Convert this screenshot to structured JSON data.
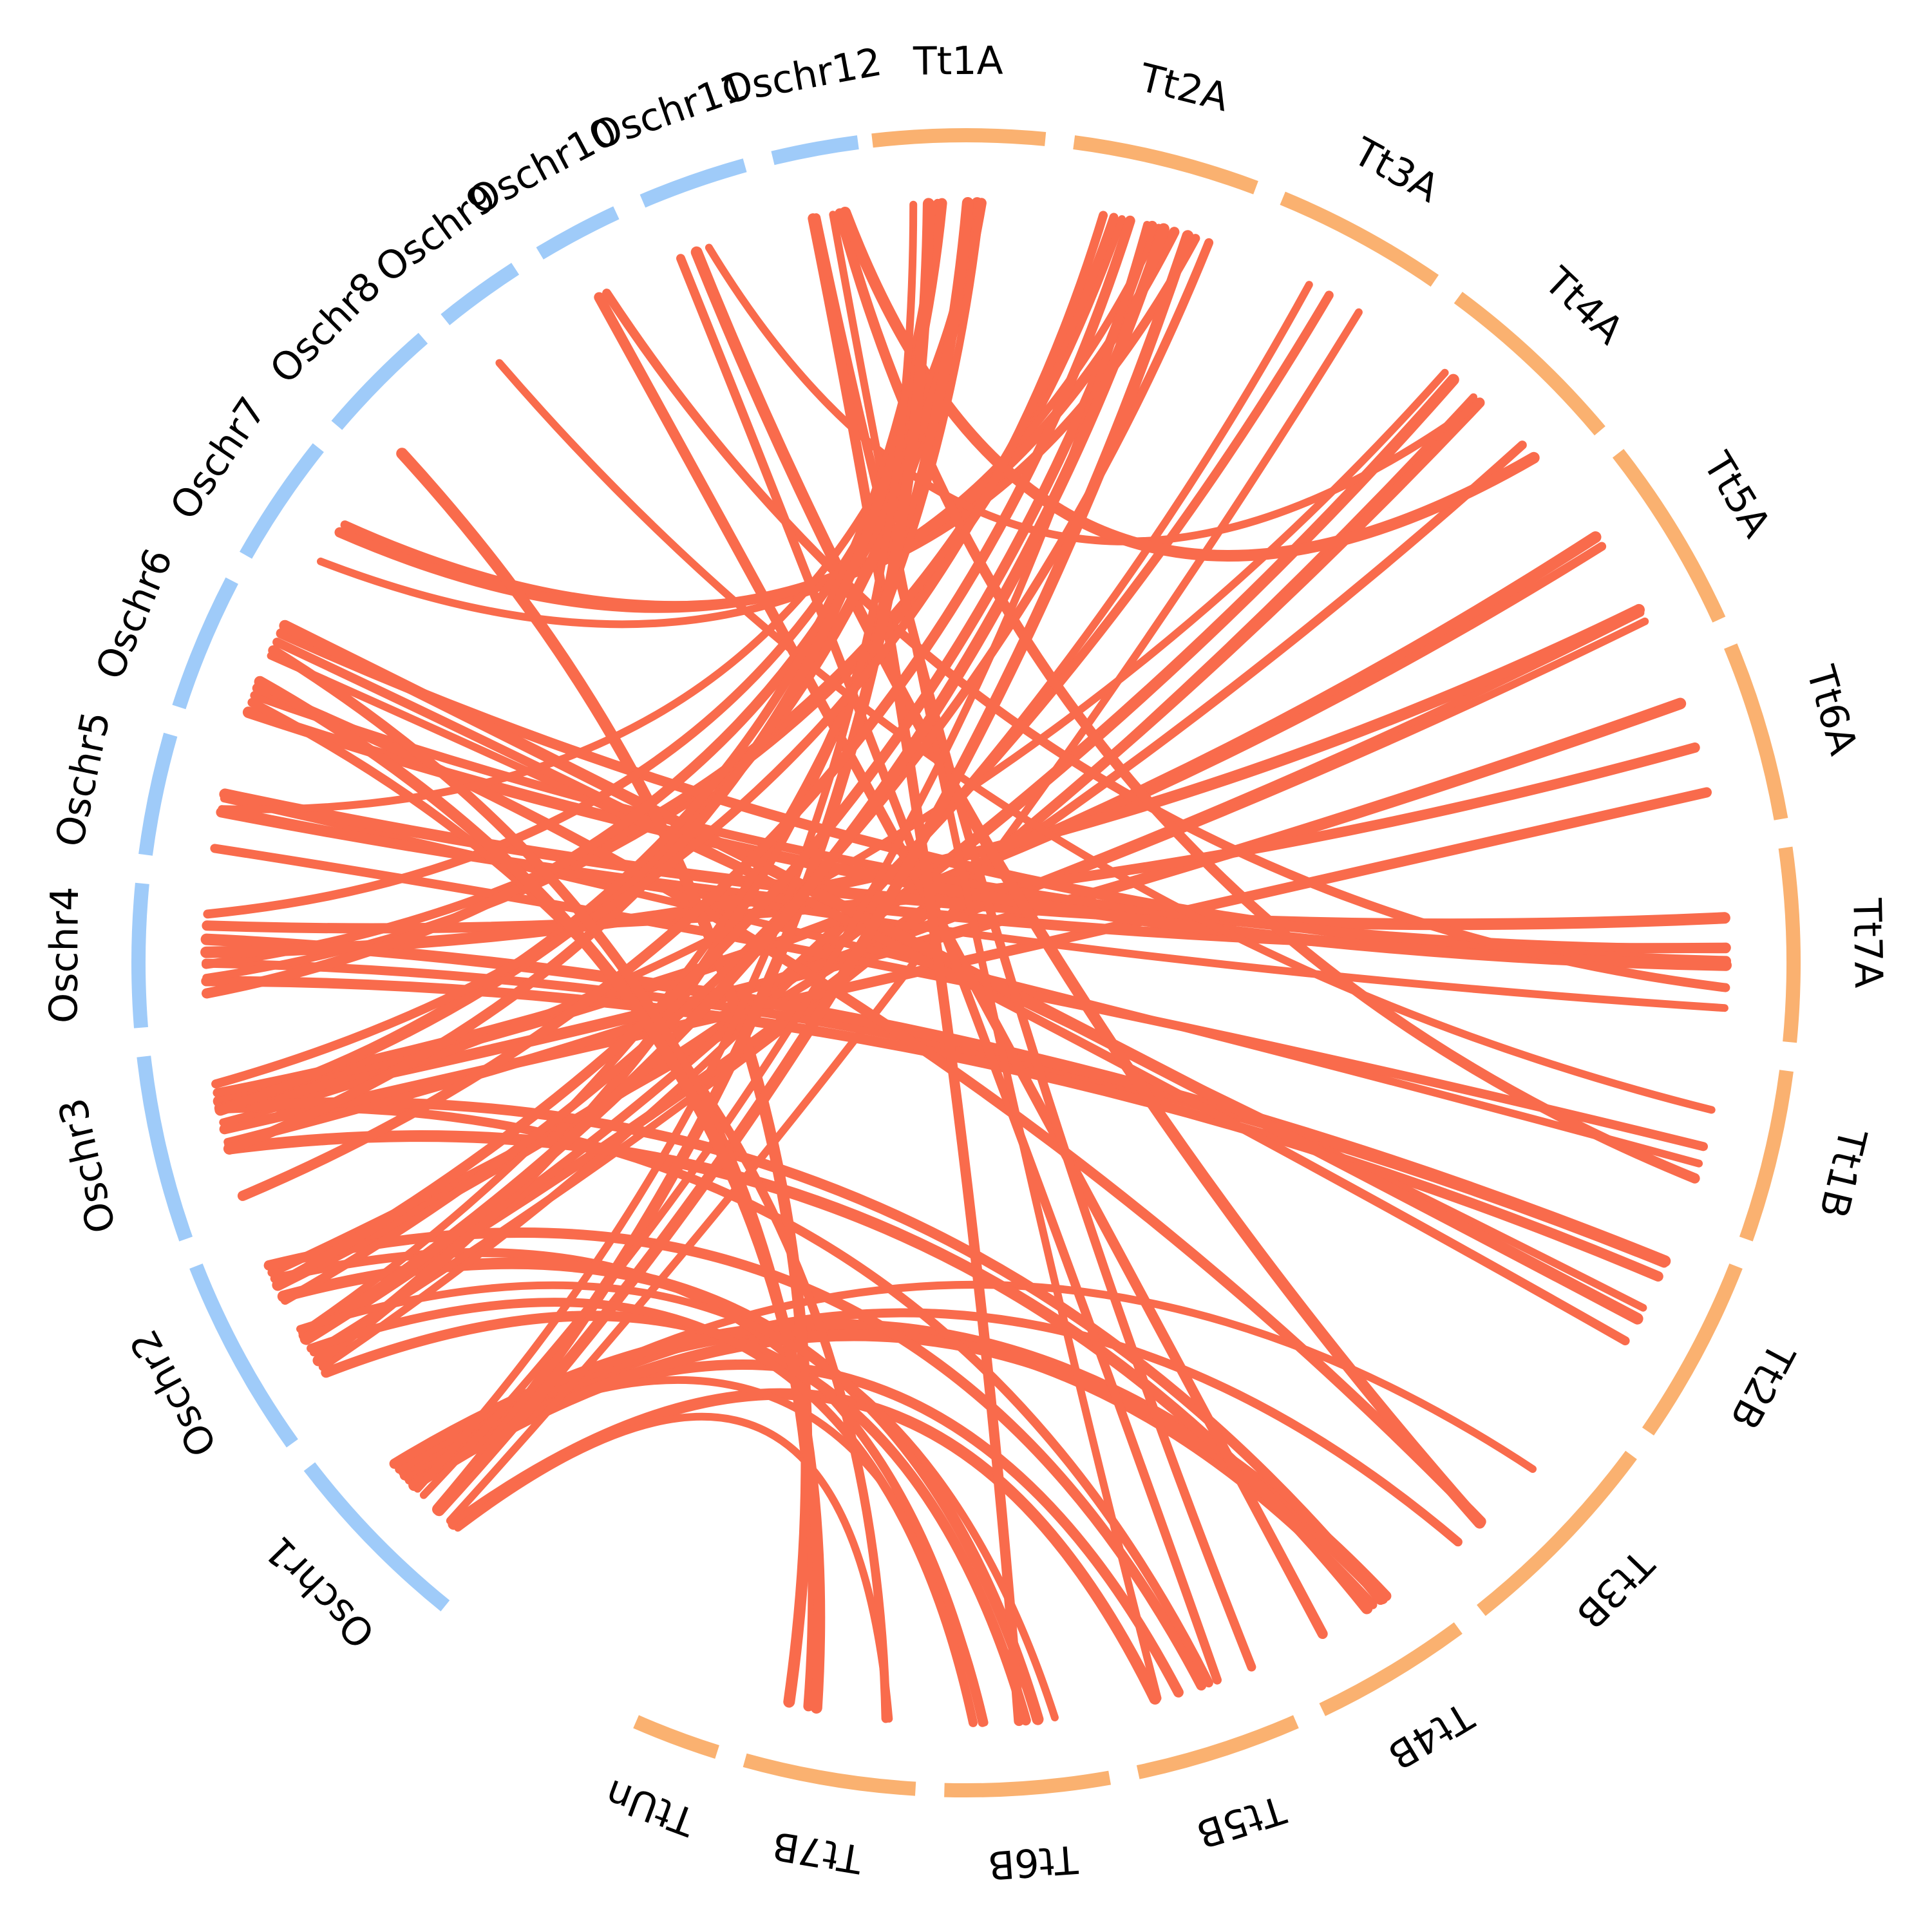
{
  "colors": {
    "rice": "#9fcbf9",
    "wheat": "#fab170",
    "link": "#f96b4c"
  },
  "chromosomes": [
    {
      "id": "Oschr1",
      "label": "Oschr1",
      "group": "rice"
    },
    {
      "id": "Oschr2",
      "label": "Oschr2",
      "group": "rice"
    },
    {
      "id": "Oschr3",
      "label": "Oschr3",
      "group": "rice"
    },
    {
      "id": "Oschr4",
      "label": "Oschr4",
      "group": "rice"
    },
    {
      "id": "Oschr5",
      "label": "Oschr5",
      "group": "rice"
    },
    {
      "id": "Oschr6",
      "label": "Oschr6",
      "group": "rice"
    },
    {
      "id": "Oschr7",
      "label": "Oschr7",
      "group": "rice"
    },
    {
      "id": "Oschr8",
      "label": "Oschr8",
      "group": "rice"
    },
    {
      "id": "Oschr9",
      "label": "Oschr9",
      "group": "rice"
    },
    {
      "id": "Oschr10",
      "label": "Oschr10",
      "group": "rice"
    },
    {
      "id": "Oschr11",
      "label": "Oschr11",
      "group": "rice"
    },
    {
      "id": "Oschr12",
      "label": "Oschr12",
      "group": "rice"
    },
    {
      "id": "Tt1A",
      "label": "Tt1A",
      "group": "wheat"
    },
    {
      "id": "Tt2A",
      "label": "Tt2A",
      "group": "wheat"
    },
    {
      "id": "Tt3A",
      "label": "Tt3A",
      "group": "wheat"
    },
    {
      "id": "Tt4A",
      "label": "Tt4A",
      "group": "wheat"
    },
    {
      "id": "Tt5A",
      "label": "Tt5A",
      "group": "wheat"
    },
    {
      "id": "Tt6A",
      "label": "Tt6A",
      "group": "wheat"
    },
    {
      "id": "Tt7A",
      "label": "Tt7A",
      "group": "wheat"
    },
    {
      "id": "Tt1B",
      "label": "Tt1B",
      "group": "wheat"
    },
    {
      "id": "Tt2B",
      "label": "Tt2B",
      "group": "wheat"
    },
    {
      "id": "Tt3B",
      "label": "Tt3B",
      "group": "wheat"
    },
    {
      "id": "Tt4B",
      "label": "Tt4B",
      "group": "wheat"
    },
    {
      "id": "Tt5B",
      "label": "Tt5B",
      "group": "wheat"
    },
    {
      "id": "Tt6B",
      "label": "Tt6B",
      "group": "wheat"
    },
    {
      "id": "Tt7B",
      "label": "Tt7B",
      "group": "wheat"
    },
    {
      "id": "TtUn",
      "label": "TtUn",
      "group": "wheat"
    }
  ],
  "links": [
    {
      "from": "Oschr1",
      "to": "Tt3B"
    },
    {
      "from": "Oschr1",
      "to": "Tt3B"
    },
    {
      "from": "Oschr1",
      "to": "Tt5B"
    },
    {
      "from": "Oschr1",
      "to": "Tt5B"
    },
    {
      "from": "Oschr1",
      "to": "Tt6B"
    },
    {
      "from": "Oschr1",
      "to": "Tt4B"
    },
    {
      "from": "Oschr1",
      "to": "Tt4B"
    },
    {
      "from": "Oschr1",
      "to": "Tt4B"
    },
    {
      "from": "Oschr1",
      "to": "Tt3A"
    },
    {
      "from": "Oschr2",
      "to": "Tt6B"
    },
    {
      "from": "Oschr2",
      "to": "Tt6B"
    },
    {
      "from": "Oschr2",
      "to": "Tt6B"
    },
    {
      "from": "Oschr2",
      "to": "Tt4A"
    },
    {
      "from": "Oschr2",
      "to": "Tt4A"
    },
    {
      "from": "Oschr2",
      "to": "Tt4A"
    },
    {
      "from": "Oschr2",
      "to": "Tt4A"
    },
    {
      "from": "Oschr2",
      "to": "Tt3A"
    },
    {
      "from": "Oschr2",
      "to": "Tt3A"
    },
    {
      "from": "Oschr2",
      "to": "Tt5B"
    },
    {
      "from": "Oschr3",
      "to": "Tt5A"
    },
    {
      "from": "Oschr3",
      "to": "Tt5A"
    },
    {
      "from": "Oschr3",
      "to": "Tt5A"
    },
    {
      "from": "Oschr3",
      "to": "Tt6A"
    },
    {
      "from": "Oschr3",
      "to": "Tt6A"
    },
    {
      "from": "Oschr3",
      "to": "Tt4A"
    },
    {
      "from": "Oschr3",
      "to": "Tt5B"
    },
    {
      "from": "Oschr3",
      "to": "Tt4B"
    },
    {
      "from": "Oschr3",
      "to": "Tt4B"
    },
    {
      "from": "Oschr3",
      "to": "Tt5A"
    },
    {
      "from": "Oschr4",
      "to": "Tt2B"
    },
    {
      "from": "Oschr4",
      "to": "Tt2B"
    },
    {
      "from": "Oschr4",
      "to": "Tt2B"
    },
    {
      "from": "Oschr4",
      "to": "Tt2A"
    },
    {
      "from": "Oschr4",
      "to": "Tt2A"
    },
    {
      "from": "Oschr4",
      "to": "Tt6A"
    },
    {
      "from": "Oschr4",
      "to": "Tt5A"
    },
    {
      "from": "Oschr5",
      "to": "Tt1B"
    },
    {
      "from": "Oschr5",
      "to": "Tt1B"
    },
    {
      "from": "Oschr5",
      "to": "Tt7A"
    },
    {
      "from": "Oschr5",
      "to": "Tt7A"
    },
    {
      "from": "Oschr5",
      "to": "Tt7A"
    },
    {
      "from": "Oschr6",
      "to": "Tt7A"
    },
    {
      "from": "Oschr6",
      "to": "Tt7A"
    },
    {
      "from": "Oschr6",
      "to": "Tt7A"
    },
    {
      "from": "Oschr6",
      "to": "Tt2B"
    },
    {
      "from": "Oschr6",
      "to": "Tt2B"
    },
    {
      "from": "Oschr6",
      "to": "Tt3B"
    },
    {
      "from": "Oschr6",
      "to": "Tt2B"
    },
    {
      "from": "Oschr7",
      "to": "Tt2A"
    },
    {
      "from": "Oschr7",
      "to": "Tt2A"
    },
    {
      "from": "Oschr7",
      "to": "Tt2A"
    },
    {
      "from": "Oschr8",
      "to": "Tt7B"
    },
    {
      "from": "Oschr9",
      "to": "Tt1B"
    },
    {
      "from": "Oschr10",
      "to": "Tt7A"
    },
    {
      "from": "Oschr10",
      "to": "Tt4B"
    },
    {
      "from": "Oschr11",
      "to": "Tt3B"
    },
    {
      "from": "Oschr11",
      "to": "Tt4A"
    },
    {
      "from": "Oschr11",
      "to": "Tt5B"
    },
    {
      "from": "Oschr12",
      "to": "Tt1B"
    },
    {
      "from": "Oschr12",
      "to": "Tt4A"
    },
    {
      "from": "Oschr12",
      "to": "Tt5B"
    },
    {
      "from": "Oschr12",
      "to": "Tt5B"
    },
    {
      "from": "Oschr12",
      "to": "Tt6B"
    },
    {
      "from": "Tt1A",
      "to": "Oschr3"
    },
    {
      "from": "Tt1A",
      "to": "Oschr5"
    },
    {
      "from": "Tt1A",
      "to": "Oschr4"
    },
    {
      "from": "Tt1A",
      "to": "Oschr4"
    },
    {
      "from": "Tt1A",
      "to": "Oschr2"
    },
    {
      "from": "Tt1A",
      "to": "Oschr2"
    },
    {
      "from": "Tt1A",
      "to": "Oschr3"
    },
    {
      "from": "Tt1A",
      "to": "Oschr3"
    },
    {
      "from": "Tt1A",
      "to": "Oschr1"
    },
    {
      "from": "Tt1A",
      "to": "Oschr1"
    },
    {
      "from": "Tt2A",
      "to": "Oschr2"
    },
    {
      "from": "Tt2A",
      "to": "Oschr2"
    },
    {
      "from": "Tt2A",
      "to": "Oschr1"
    },
    {
      "from": "Tt2A",
      "to": "Oschr1"
    },
    {
      "from": "Tt2A",
      "to": "Oschr3"
    },
    {
      "from": "Tt2A",
      "to": "Oschr3"
    },
    {
      "from": "Tt2A",
      "to": "Oschr2"
    },
    {
      "from": "Tt7B",
      "to": "Oschr1"
    },
    {
      "from": "Tt7B",
      "to": "Oschr6"
    },
    {
      "from": "Tt7B",
      "to": "Oschr6"
    },
    {
      "from": "Tt7B",
      "to": "Oschr6"
    },
    {
      "from": "Tt6B",
      "to": "Oschr2"
    },
    {
      "from": "Tt6B",
      "to": "Oschr2"
    }
  ]
}
